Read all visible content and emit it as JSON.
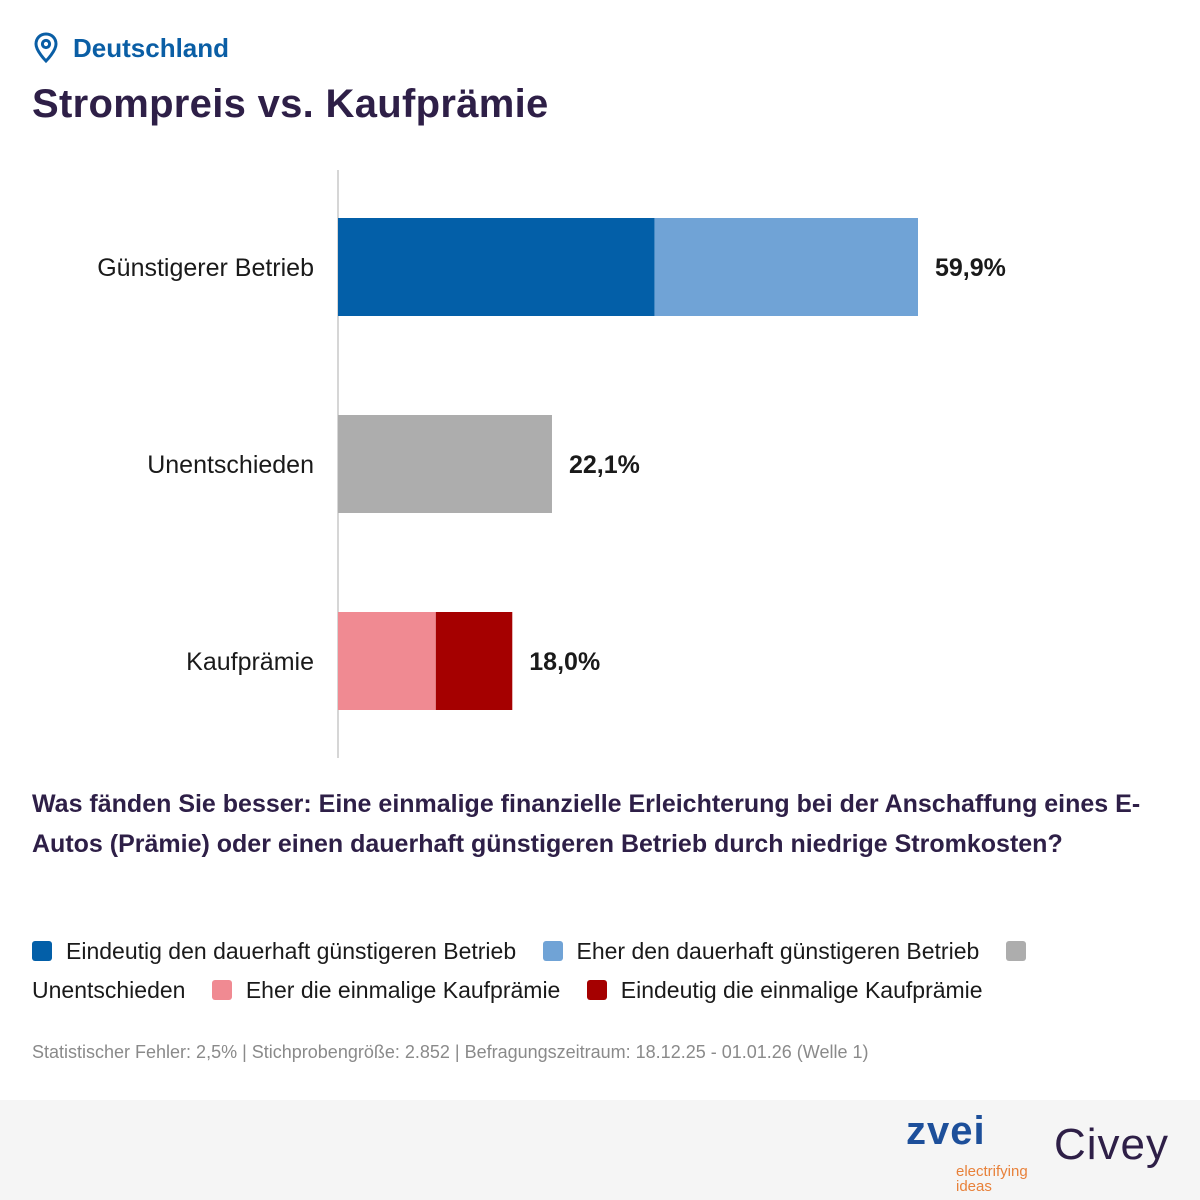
{
  "header": {
    "location": "Deutschland",
    "title": "Strompreis vs. Kaufprämie"
  },
  "chart_data": {
    "type": "bar",
    "orientation": "horizontal",
    "stacked": true,
    "xlim": [
      0,
      100
    ],
    "categories": [
      "Günstigerer Betrieb",
      "Unentschieden",
      "Kaufprämie"
    ],
    "totals_labels": [
      "59,9%",
      "22,1%",
      "18,0%"
    ],
    "segments": [
      [
        {
          "series": "Eindeutig den dauerhaft günstigeren Betrieb",
          "value": 32.7,
          "color": "#035fa8"
        },
        {
          "series": "Eher den dauerhaft günstigeren Betrieb",
          "value": 27.2,
          "color": "#70a3d6"
        }
      ],
      [
        {
          "series": "Unentschieden",
          "value": 22.1,
          "color": "#adadad"
        }
      ],
      [
        {
          "series": "Eher die einmalige Kaufprämie",
          "value": 10.1,
          "color": "#f08a92"
        },
        {
          "series": "Eindeutig die einmalige Kaufprämie",
          "value": 7.9,
          "color": "#a50000"
        }
      ]
    ]
  },
  "question": "Was fänden Sie besser: Eine einmalige finanzielle Erleichterung bei der Anschaffung eines E-Autos (Prämie) oder einen dauerhaft günstigeren Betrieb durch niedrige Stromkosten?",
  "legend": [
    {
      "label": "Eindeutig den dauerhaft günstigeren Betrieb",
      "color": "#035fa8"
    },
    {
      "label": "Eher den dauerhaft günstigeren Betrieb",
      "color": "#70a3d6"
    },
    {
      "label": "Unentschieden",
      "color": "#adadad"
    },
    {
      "label": "Eher die einmalige Kaufprämie",
      "color": "#f08a92"
    },
    {
      "label": "Eindeutig die einmalige Kaufprämie",
      "color": "#a50000"
    }
  ],
  "meta": "Statistischer Fehler: 2,5% | Stichprobengröße: 2.852 | Befragungszeitraum: 18.12.25 - 01.01.26 (Welle 1)",
  "footer": {
    "zvei_word": "zvei",
    "zvei_tagline": "electrifying ideas",
    "civey": "Civey"
  }
}
